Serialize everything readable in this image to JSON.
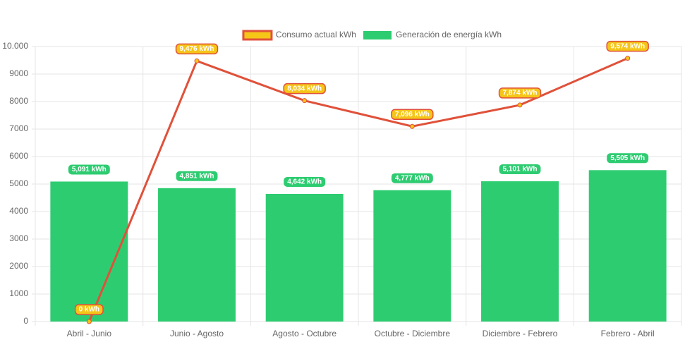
{
  "chart_data": {
    "type": "bar",
    "categories": [
      "Abril - Junio",
      "Junio - Agosto",
      "Agosto - Octubre",
      "Octubre - Diciembre",
      "Diciembre - Febrero",
      "Febrero - Abril"
    ],
    "series": [
      {
        "name": "Consumo actual kWh",
        "type": "line",
        "color": "#e0513a",
        "fill": "#f5c518",
        "values": [
          0,
          9476,
          8034,
          7096,
          7874,
          9574
        ],
        "value_labels": [
          "0 kWh",
          "9,476 kWh",
          "8,034 kWh",
          "7,096 kWh",
          "7,874 kWh",
          "9,574 kWh"
        ]
      },
      {
        "name": "Generación de energía kWh",
        "type": "bar",
        "color": "#2ecc71",
        "values": [
          5091,
          4851,
          4642,
          4777,
          5101,
          5505
        ],
        "value_labels": [
          "5,091 kWh",
          "4,851 kWh",
          "4,642 kWh",
          "4,777 kWh",
          "5,101 kWh",
          "5,505 kWh"
        ]
      }
    ],
    "ylim": [
      0,
      10000
    ],
    "yticks": [
      0,
      1000,
      2000,
      3000,
      4000,
      5000,
      6000,
      7000,
      8000,
      9000,
      {
        "value": 10000,
        "label": "10.000"
      }
    ],
    "grid": true
  }
}
